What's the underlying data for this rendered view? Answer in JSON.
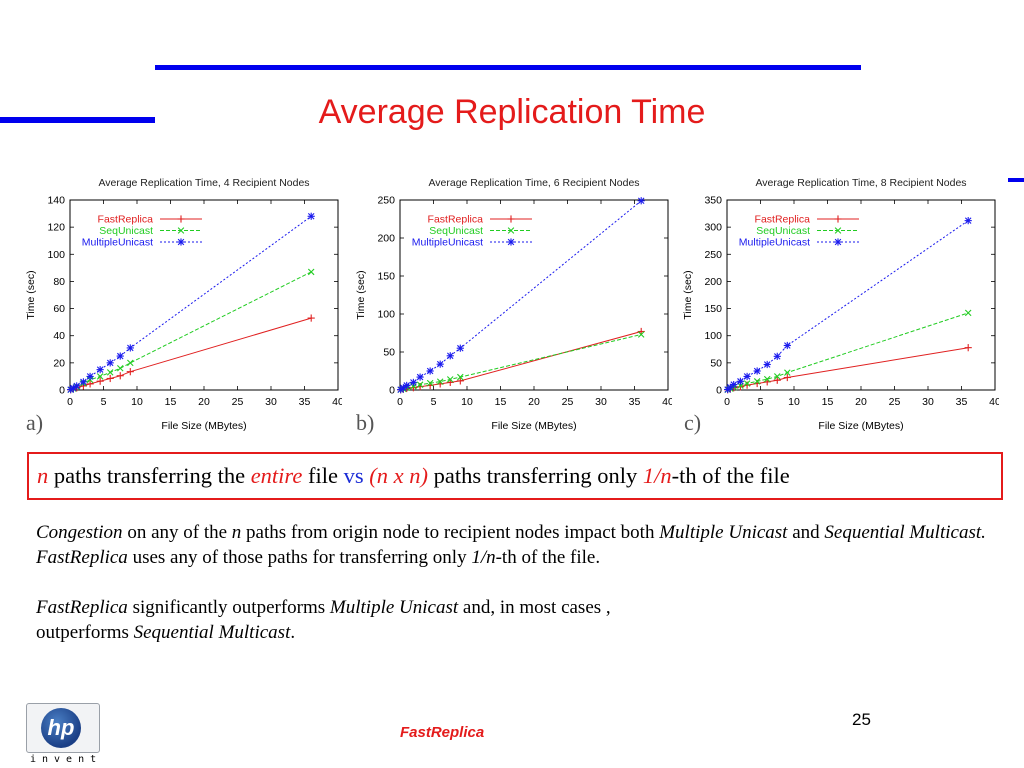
{
  "slide": {
    "title": "Average Replication Time",
    "page_number": "25",
    "footer": "FastReplica",
    "logo_text": "hp",
    "logo_tagline": "invent"
  },
  "panel_labels": [
    "a)",
    "b)",
    "c)"
  ],
  "highlight": {
    "n": "n",
    "t1": " paths transferring the ",
    "entire": "entire",
    "t2": " file ",
    "vs": "vs",
    "t3": " ",
    "nxn": "(n x n)",
    "t4": " paths transferring  only ",
    "frac": "1/n",
    "t5": "-th of the file"
  },
  "body": {
    "p1_a": "Congestion",
    "p1_b": " on any of the ",
    "p1_c": "n",
    "p1_d": " paths from origin node to recipient nodes impact both ",
    "p1_e": "Multiple Unicast",
    "p1_f": " and ",
    "p1_g": "Sequential Multicast.",
    "p2_a": "FastReplica",
    "p2_b": "  uses any of those paths for transferring  only ",
    "p2_c": "1/n",
    "p2_d": "-th of the file.",
    "p3_a": "FastReplica",
    "p3_b": " significantly outperforms ",
    "p3_c": "Multiple Unicast",
    "p3_d": "  and, in most cases ,",
    "p3_e": "outperforms ",
    "p3_f": "Sequential Multicast",
    "p3_g": "."
  },
  "colors": {
    "accent_red": "#e41b1b",
    "rule_blue": "#0000ee",
    "fastreplica": "#e02020",
    "sequnicast": "#22cc22",
    "multipleunicast": "#1a1aee"
  },
  "chart_data": [
    {
      "type": "line",
      "title": "Average Replication Time, 4 Recipient Nodes",
      "xlabel": "File Size (MBytes)",
      "ylabel": "Time (sec)",
      "xlim": [
        0,
        40
      ],
      "ylim": [
        0,
        140
      ],
      "xticks": [
        0,
        5,
        10,
        15,
        20,
        25,
        30,
        35,
        40
      ],
      "yticks": [
        0,
        20,
        40,
        60,
        80,
        100,
        120,
        140
      ],
      "legend": "top-left",
      "x": [
        0.1,
        0.5,
        1,
        2,
        3,
        4.5,
        6,
        7.5,
        9,
        36
      ],
      "series": [
        {
          "name": "FastReplica",
          "color": "#e02020",
          "marker": "+",
          "values": [
            0.2,
            0.8,
            1.5,
            3,
            4.5,
            6.5,
            8.5,
            10.5,
            13.5,
            53
          ]
        },
        {
          "name": "SeqUnicast",
          "color": "#22cc22",
          "marker": "x",
          "values": [
            0.2,
            1,
            2.5,
            5,
            7.5,
            10,
            13,
            16,
            20,
            87
          ]
        },
        {
          "name": "MultipleUnicast",
          "color": "#1a1aee",
          "marker": "*",
          "values": [
            0.3,
            1.5,
            3,
            6,
            10,
            15,
            20,
            25,
            31,
            128
          ]
        }
      ]
    },
    {
      "type": "line",
      "title": "Average Replication Time, 6 Recipient Nodes",
      "xlabel": "File Size (MBytes)",
      "ylabel": "Time (sec)",
      "xlim": [
        0,
        40
      ],
      "ylim": [
        0,
        250
      ],
      "xticks": [
        0,
        5,
        10,
        15,
        20,
        25,
        30,
        35,
        40
      ],
      "yticks": [
        0,
        50,
        100,
        150,
        200,
        250
      ],
      "legend": "top-left",
      "x": [
        0.1,
        0.5,
        1,
        2,
        3,
        4.5,
        6,
        7.5,
        9,
        36
      ],
      "series": [
        {
          "name": "FastReplica",
          "color": "#e02020",
          "marker": "+",
          "values": [
            0.3,
            1,
            2,
            3,
            4.5,
            6,
            8,
            10,
            12,
            77
          ]
        },
        {
          "name": "SeqUnicast",
          "color": "#22cc22",
          "marker": "x",
          "values": [
            0.3,
            1.5,
            3,
            5,
            7,
            9,
            11,
            14,
            17,
            73
          ]
        },
        {
          "name": "MultipleUnicast",
          "color": "#1a1aee",
          "marker": "*",
          "values": [
            0.5,
            3,
            6,
            10,
            17,
            25,
            34,
            45,
            55,
            249
          ]
        }
      ]
    },
    {
      "type": "line",
      "title": "Average Replication Time, 8 Recipient Nodes",
      "xlabel": "File Size (MBytes)",
      "ylabel": "Time (sec)",
      "xlim": [
        0,
        40
      ],
      "ylim": [
        0,
        350
      ],
      "xticks": [
        0,
        5,
        10,
        15,
        20,
        25,
        30,
        35,
        40
      ],
      "yticks": [
        0,
        50,
        100,
        150,
        200,
        250,
        300,
        350
      ],
      "legend": "top-left",
      "x": [
        0.1,
        0.5,
        1,
        2,
        3,
        4.5,
        6,
        7.5,
        9,
        36
      ],
      "series": [
        {
          "name": "FastReplica",
          "color": "#e02020",
          "marker": "+",
          "values": [
            0.5,
            2,
            4,
            6,
            9,
            12,
            15,
            18,
            23,
            78
          ]
        },
        {
          "name": "SeqUnicast",
          "color": "#22cc22",
          "marker": "x",
          "values": [
            0.5,
            2.5,
            5,
            8,
            12,
            16,
            20,
            25,
            32,
            142
          ]
        },
        {
          "name": "MultipleUnicast",
          "color": "#1a1aee",
          "marker": "*",
          "values": [
            1,
            5,
            10,
            16,
            25,
            35,
            47,
            62,
            82,
            312
          ]
        }
      ]
    }
  ]
}
